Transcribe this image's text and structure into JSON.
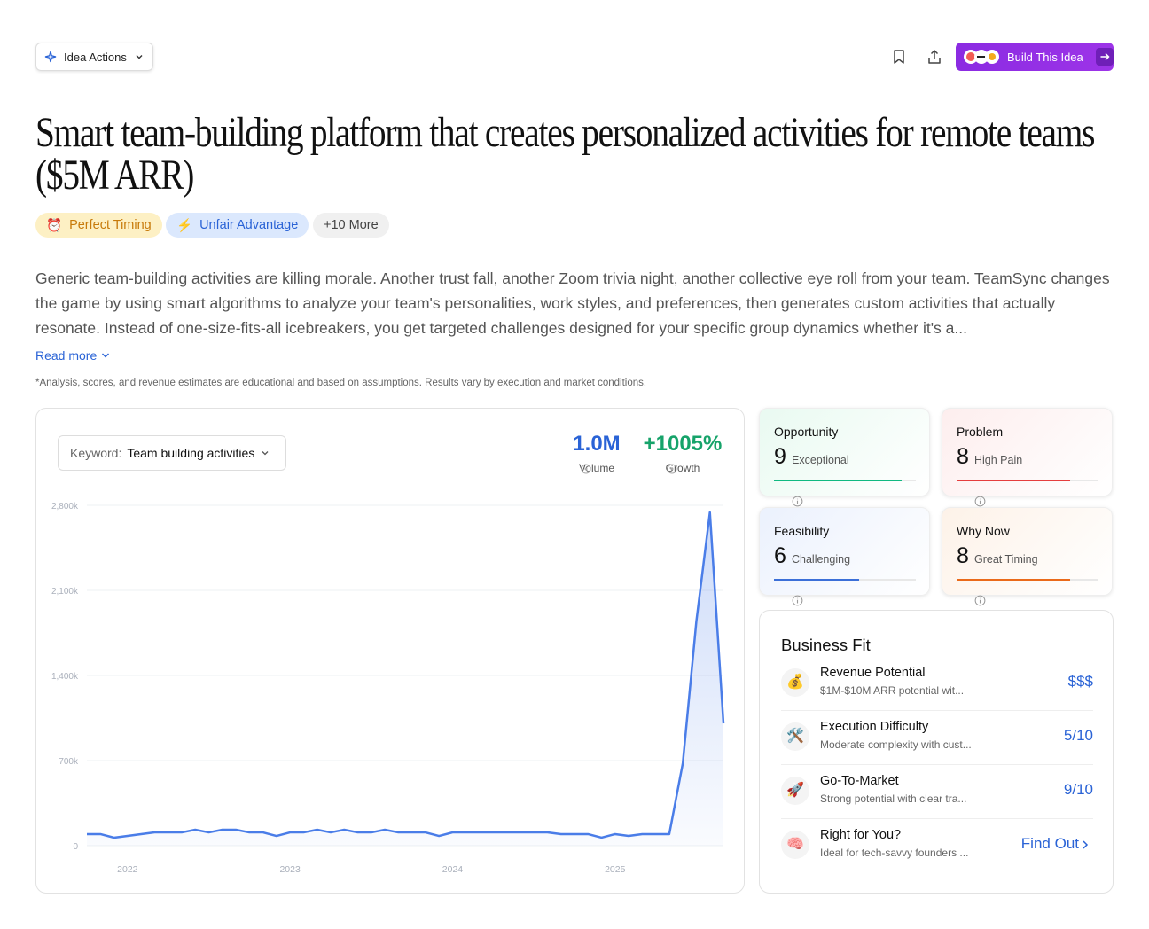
{
  "toolbar": {
    "idea_actions": "Idea Actions",
    "build": "Build This Idea"
  },
  "title": "Smart team-building platform that creates personalized activities for remote teams ($5M ARR)",
  "tags": [
    {
      "icon": "⏰",
      "label": "Perfect Timing"
    },
    {
      "icon": "⚡",
      "label": "Unfair Advantage"
    }
  ],
  "more_tags": "+10 More",
  "description": "Generic team-building activities are killing morale. Another trust fall, another Zoom trivia night, another collective eye roll from your team. TeamSync changes the game by using smart algorithms to analyze your team's personalities, work styles, and preferences, then generates custom activities that actually resonate. Instead of one-size-fits-all icebreakers, you get targeted challenges designed for your specific group dynamics whether it's a...",
  "read_more": "Read more",
  "disclaimer": "*Analysis, scores, and revenue estimates are educational and based on assumptions. Results vary by execution and market conditions.",
  "trend": {
    "keyword_label": "Keyword:",
    "keyword": "Team building activities",
    "stats": [
      {
        "value": "1.0M",
        "label": "Volume"
      },
      {
        "value": "+1005%",
        "label": "Growth"
      }
    ]
  },
  "chart_data": {
    "type": "area",
    "color": "#4a7de8",
    "grid": true,
    "categories": [
      null,
      null,
      null,
      "2022",
      null,
      null,
      null,
      null,
      null,
      null,
      null,
      null,
      null,
      null,
      null,
      "2023",
      null,
      null,
      null,
      null,
      null,
      null,
      null,
      null,
      null,
      null,
      null,
      "2024",
      null,
      null,
      null,
      null,
      null,
      null,
      null,
      null,
      null,
      null,
      null,
      "2025",
      null,
      null,
      null,
      null,
      null,
      null,
      null,
      null
    ],
    "values": [
      95000,
      95000,
      66000,
      80000,
      95000,
      109000,
      109000,
      109000,
      131000,
      109000,
      131000,
      131000,
      109000,
      109000,
      80000,
      109000,
      109000,
      131000,
      109000,
      131000,
      109000,
      109000,
      131000,
      109000,
      109000,
      109000,
      80000,
      109000,
      109000,
      109000,
      109000,
      109000,
      109000,
      109000,
      109000,
      95000,
      95000,
      95000,
      66000,
      95000,
      80000,
      95000,
      95000,
      95000,
      678000,
      1845000,
      2742000,
      1006000
    ],
    "ylim": [
      0,
      2800000
    ],
    "yticks": [
      0,
      {
        "value": 700000,
        "label": "700k"
      },
      {
        "value": 1400000,
        "label": "1,400k"
      },
      {
        "value": 2100000,
        "label": "2,100k"
      },
      {
        "value": 2800000,
        "label": "2,800k"
      }
    ]
  },
  "score_scale": 10,
  "scores": [
    {
      "name": "Opportunity",
      "score": 9,
      "label": "Exceptional",
      "color": "#10b981",
      "bg": "#e9faf1"
    },
    {
      "name": "Problem",
      "score": 8,
      "label": "High Pain",
      "color": "#e53e3e",
      "bg": "#fdeeee"
    },
    {
      "name": "Feasibility",
      "score": 6,
      "label": "Challenging",
      "color": "#3b6fd8",
      "bg": "#ebf1fd"
    },
    {
      "name": "Why Now",
      "score": 8,
      "label": "Great Timing",
      "color": "#ea6a1a",
      "bg": "#fdf2e8"
    }
  ],
  "business_fit": {
    "title": "Business Fit",
    "items": [
      {
        "icon": "💰",
        "name": "Revenue Potential",
        "detail": "$1M-$10M ARR potential wit...",
        "rating": "$$$"
      },
      {
        "icon": "🛠️",
        "name": "Execution Difficulty",
        "detail": "Moderate complexity with cust...",
        "rating": "5/10"
      },
      {
        "icon": "🚀",
        "name": "Go-To-Market",
        "detail": "Strong potential with clear tra...",
        "rating": "9/10"
      },
      {
        "icon": "🧠",
        "name": "Right for You?",
        "detail": "Ideal for tech-savvy founders ...",
        "rating": "Find Out"
      }
    ]
  }
}
